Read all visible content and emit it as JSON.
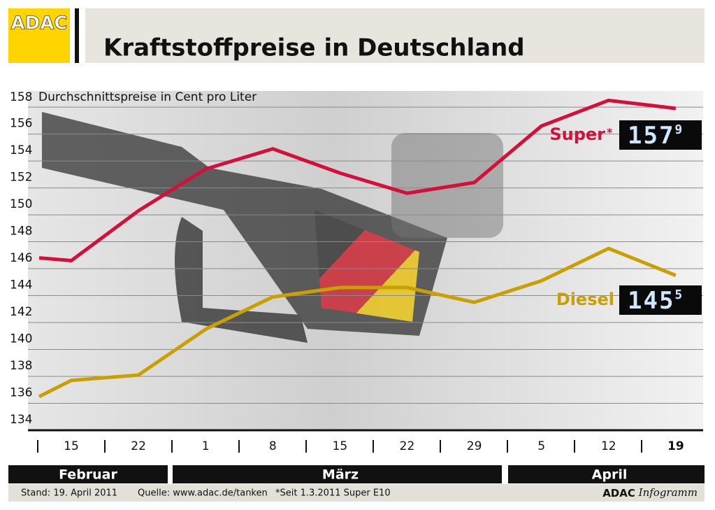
{
  "header": {
    "logo": "ADAC",
    "title": "Kraftstoffpreise in Deutschland"
  },
  "chart_data": {
    "type": "line",
    "subtitle": "Durchschnittspreise in Cent pro Liter",
    "categories": [
      null,
      "15",
      "22",
      "1",
      "8",
      "15",
      "22",
      "29",
      "5",
      "12",
      "19"
    ],
    "months": [
      "Februar",
      "März",
      "April"
    ],
    "ylim": [
      134,
      159.2
    ],
    "yticks": [
      134,
      136,
      138,
      140,
      142,
      144,
      146,
      148,
      150,
      152,
      154,
      156,
      158
    ],
    "grid": true,
    "series": [
      {
        "name": "Super",
        "note_mark": "*",
        "color": "#d4103a",
        "values": [
          146.8,
          146.6,
          150.3,
          153.4,
          154.9,
          153.1,
          151.6,
          152.4,
          156.6,
          158.5,
          157.9
        ],
        "display": {
          "main": "157",
          "sup": "9"
        }
      },
      {
        "name": "Diesel",
        "color": "#c9a000",
        "values": [
          136.5,
          137.7,
          138.1,
          141.5,
          143.9,
          144.6,
          144.6,
          143.5,
          145.1,
          147.5,
          145.5
        ],
        "display": {
          "main": "145",
          "sup": "5"
        }
      }
    ]
  },
  "footer": {
    "stand": "Stand:  19. April 2011",
    "source": "Quelle: www.adac.de/tanken",
    "note": "*Seit 1.3.2011 Super E10",
    "brand": "ADAC",
    "brand_sub": "Infogramm"
  }
}
